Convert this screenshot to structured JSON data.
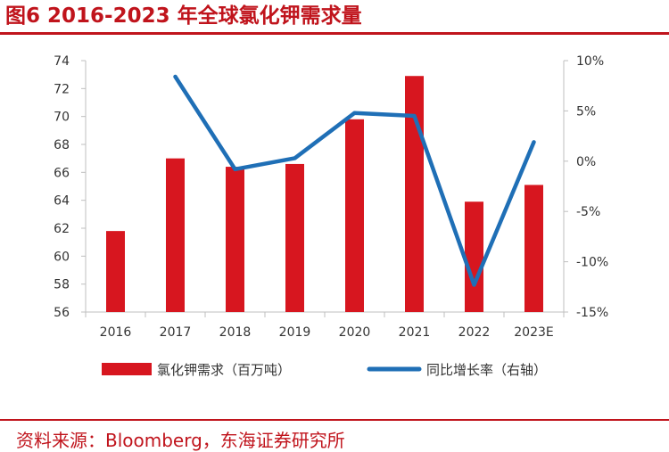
{
  "title": "图6  2016-2023 年全球氯化钾需求量",
  "source": "资料来源：Bloomberg，东海证券研究所",
  "colors": {
    "bar": "#d7161f",
    "line": "#1f6fb6",
    "accent": "#c0141c",
    "axis": "#bfbfbf"
  },
  "chart_data": {
    "type": "bar",
    "categories": [
      "2016",
      "2017",
      "2018",
      "2019",
      "2020",
      "2021",
      "2022",
      "2023E"
    ],
    "series": [
      {
        "name": "氯化钾需求（百万吨）",
        "type": "bar",
        "axis": "left",
        "values": [
          61.8,
          67.0,
          66.4,
          66.6,
          69.8,
          72.9,
          63.9,
          65.1
        ]
      },
      {
        "name": "同比增长率（右轴）",
        "type": "line",
        "axis": "right",
        "values": [
          null,
          8.4,
          -0.8,
          0.3,
          4.8,
          4.5,
          -12.3,
          1.9
        ]
      }
    ],
    "y_left": {
      "min": 56,
      "max": 74,
      "ticks": [
        "56",
        "58",
        "60",
        "62",
        "64",
        "66",
        "68",
        "70",
        "72",
        "74"
      ]
    },
    "y_right": {
      "min": -15,
      "max": 10,
      "ticks": [
        "-15%",
        "-10%",
        "-5%",
        "0%",
        "5%",
        "10%"
      ]
    },
    "legend": "bottom",
    "grid": false
  }
}
